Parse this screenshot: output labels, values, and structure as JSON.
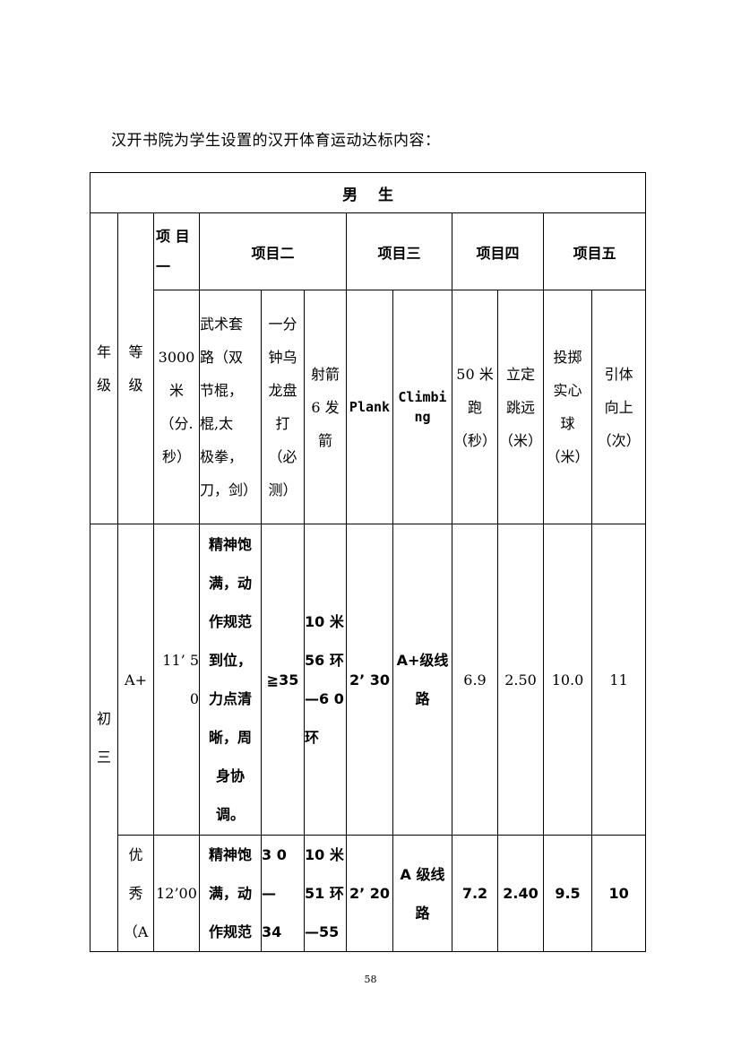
{
  "intro": "汉开书院为学生设置的汉开体育运动达标内容：",
  "table": {
    "title": "男　 生",
    "groups": [
      "项 目\n一",
      "项目二",
      "项目三",
      "项目四",
      "项目五"
    ],
    "headers": {
      "grade": "年\n级",
      "level": "等\n级",
      "run3000": "3000\n米\n（分.\n秒）",
      "wushu": "武术套\n路（双\n节棍，\n棍,太\n极拳，\n刀，剑）",
      "rope": "一分\n钟乌\n龙盘\n打\n（必\n测）",
      "archery": "射箭\n6 发\n箭",
      "plank": "Plank",
      "climbing": "Climbi\nng",
      "run50": "50 米\n跑\n（秒）",
      "jump": "立定\n跳远\n（米）",
      "ball": "投掷\n实心\n球\n（米）",
      "pullup": "引体\n向上\n（次）"
    },
    "grade_value": "初\n三",
    "rows": [
      {
        "level": "A+",
        "run3000": "11’ 5\n0",
        "wushu": "精神饱\n满，动\n作规范\n到位，\n力点清\n晰，周\n身协\n调。",
        "rope": "≧35",
        "archery": "10 米\n56 环\n—6 0\n环",
        "plank": "2’ 30",
        "climbing": "A+级线\n路",
        "run50": "6.9",
        "jump": "2.50",
        "ball": "10.0",
        "pullup": "11"
      },
      {
        "level": "优\n秀\n（A",
        "run3000": "12’00",
        "wushu": "精神饱\n满，动\n作规范",
        "rope": "3 0 —\n34",
        "archery": "10 米\n51 环\n—55",
        "plank": "2’ 20",
        "climbing": "A 级线\n路",
        "run50": "7.2",
        "jump": "2.40",
        "ball": "9.5",
        "pullup": "10"
      }
    ]
  },
  "page_number": "58"
}
